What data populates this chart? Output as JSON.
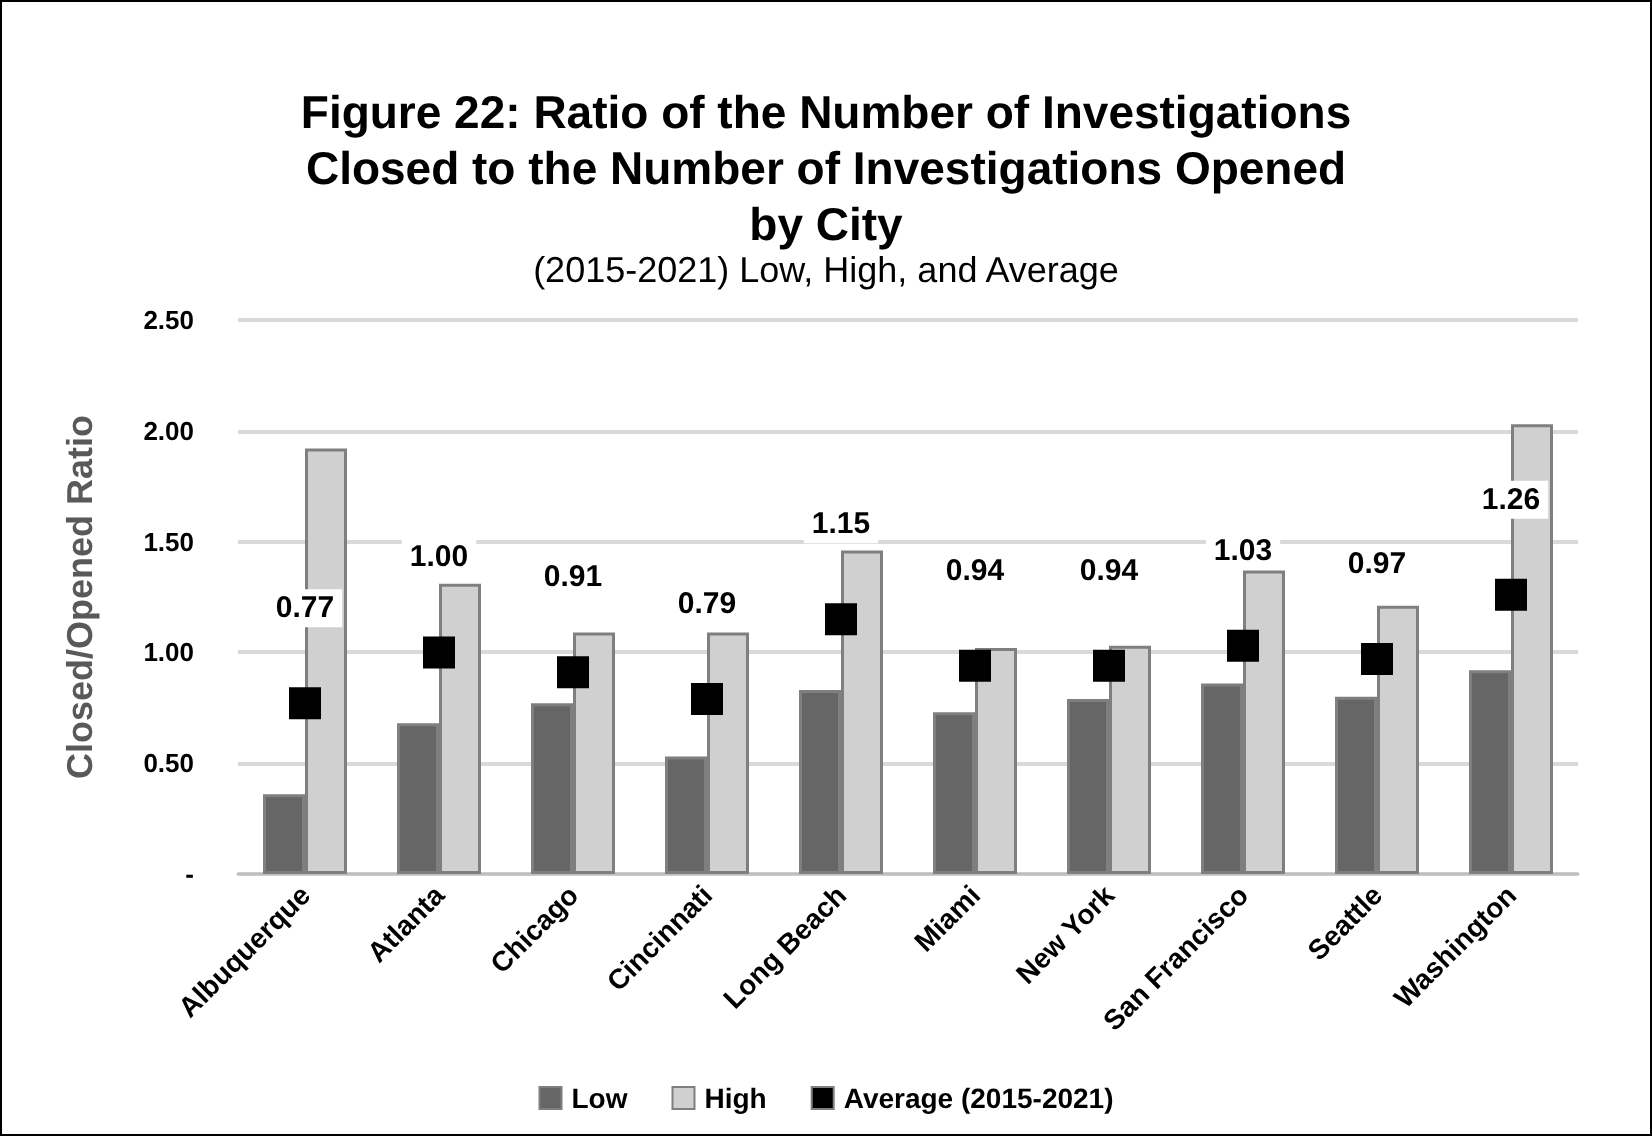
{
  "chart_data": {
    "type": "bar",
    "title": "Figure 22: Ratio of the Number of Investigations\nClosed to the Number of Investigations Opened\nby City",
    "subtitle": "(2015-2021) Low, High, and Average",
    "ylabel": "Closed/Opened Ratio",
    "categories": [
      "Albuquerque",
      "Atlanta",
      "Chicago",
      "Cincinnati",
      "Long Beach",
      "Miami",
      "New York",
      "San Francisco",
      "Seattle",
      "Washington"
    ],
    "series": [
      {
        "name": "Low",
        "color": "#666666",
        "values": [
          0.36,
          0.68,
          0.77,
          0.53,
          0.83,
          0.73,
          0.79,
          0.86,
          0.8,
          0.92
        ]
      },
      {
        "name": "High",
        "color": "#d0d0d0",
        "values": [
          1.92,
          1.31,
          1.09,
          1.09,
          1.46,
          1.02,
          1.03,
          1.37,
          1.21,
          2.03
        ]
      },
      {
        "name": "Average (2015-2021)",
        "type": "scatter",
        "color": "#000000",
        "marker": "square",
        "values": [
          0.77,
          1.0,
          0.91,
          0.79,
          1.15,
          0.94,
          0.94,
          1.03,
          0.97,
          1.26
        ],
        "value_labels": [
          "0.77",
          "1.00",
          "0.91",
          "0.79",
          "1.15",
          "0.94",
          "0.94",
          "1.03",
          "0.97",
          "1.26"
        ]
      }
    ],
    "ylim": [
      0,
      2.5
    ],
    "yticks": [
      {
        "value": 0,
        "label": "-"
      },
      {
        "value": 0.5,
        "label": "0.50"
      },
      {
        "value": 1,
        "label": "1.00"
      },
      {
        "value": 1.5,
        "label": "1.50"
      },
      {
        "value": 2,
        "label": "2.00"
      },
      {
        "value": 2.5,
        "label": "2.50"
      }
    ],
    "grid": "y",
    "legend": "bottom"
  }
}
